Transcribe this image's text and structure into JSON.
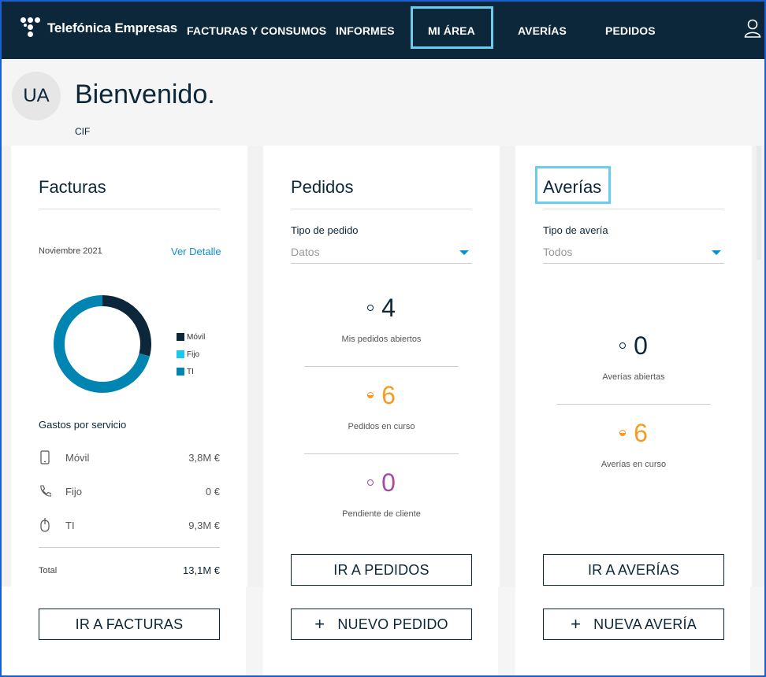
{
  "header": {
    "logo_text": "Telefónica Empresas",
    "nav": [
      {
        "label": "FACTURAS Y CONSUMOS"
      },
      {
        "label": "INFORMES"
      },
      {
        "label": "MI ÁREA"
      },
      {
        "label": "AVERÍAS"
      },
      {
        "label": "PEDIDOS"
      }
    ],
    "active_nav": "MI ÁREA",
    "user_icon": "user-icon"
  },
  "welcome": {
    "avatar_initials": "UA",
    "title": "Bienvenido.",
    "cif_label": "CIF"
  },
  "facturas": {
    "title": "Facturas",
    "period": "Noviembre 2021",
    "detail_link": "Ver Detalle",
    "legend": [
      {
        "label": "Móvil",
        "color": "#0b2739"
      },
      {
        "label": "Fijo",
        "color": "#19c8f0"
      },
      {
        "label": "TI",
        "color": "#0085b2"
      }
    ],
    "gastos_title": "Gastos por servicio",
    "services": [
      {
        "label": "Móvil",
        "value": "3,8M €",
        "icon": "mobile-phone-icon"
      },
      {
        "label": "Fijo",
        "value": "0 €",
        "icon": "landline-phone-icon"
      },
      {
        "label": "TI",
        "value": "9,3M €",
        "icon": "computer-mouse-icon"
      }
    ],
    "total_label": "Total",
    "total_value": "13,1M €",
    "button": "IR A FACTURAS"
  },
  "pedidos": {
    "title": "Pedidos",
    "select_label": "Tipo de pedido",
    "select_value": "Datos",
    "stats": [
      {
        "value": "4",
        "label": "Mis pedidos abiertos",
        "color": "#0b2739"
      },
      {
        "value": "6",
        "label": "Pedidos en curso",
        "color": "#f59c1e"
      },
      {
        "value": "0",
        "label": "Pendiente de cliente",
        "color": "#a44c9e"
      }
    ],
    "button_primary": "IR A PEDIDOS",
    "button_new": "NUEVO PEDIDO"
  },
  "averias": {
    "title": "Averías",
    "select_label": "Tipo de avería",
    "select_value": "Todos",
    "stats": [
      {
        "value": "0",
        "label": "Averías abiertas",
        "color": "#0b2739"
      },
      {
        "value": "6",
        "label": "Averías en curso",
        "color": "#f59c1e"
      }
    ],
    "button_primary": "IR A AVERÍAS",
    "button_new": "NUEVA AVERÍA"
  },
  "chart_data": {
    "type": "pie",
    "categories": [
      "Móvil",
      "Fijo",
      "TI"
    ],
    "values": [
      3.8,
      0,
      9.3
    ],
    "colors": [
      "#0b2739",
      "#19c8f0",
      "#0085b2"
    ],
    "style": "donut"
  },
  "colors": {
    "nav_bg": "#0b2739",
    "highlight": "#69cdf0",
    "link": "#0b8fcf"
  }
}
